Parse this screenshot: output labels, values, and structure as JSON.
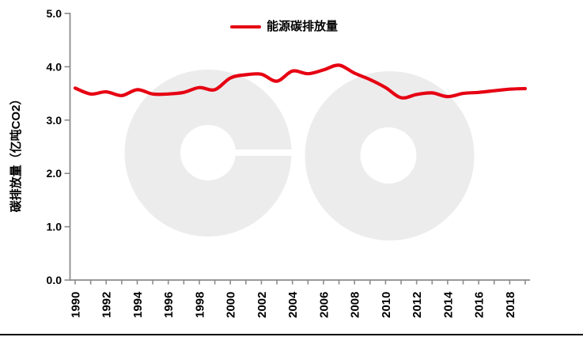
{
  "chart": {
    "watermark_text": "eo",
    "legend": {
      "label": "能源碳排放量"
    }
  },
  "chart_data": {
    "type": "line",
    "title": "",
    "xlabel": "",
    "ylabel": "碳排放量（亿吨CO2）",
    "ylim": [
      0.0,
      5.0
    ],
    "y_tick_labels": [
      "0.0",
      "1.0",
      "2.0",
      "3.0",
      "4.0",
      "5.0"
    ],
    "x": [
      1990,
      1991,
      1992,
      1993,
      1994,
      1995,
      1996,
      1997,
      1998,
      1999,
      2000,
      2001,
      2002,
      2003,
      2004,
      2005,
      2006,
      2007,
      2008,
      2009,
      2010,
      2011,
      2012,
      2013,
      2014,
      2015,
      2016,
      2017,
      2018,
      2019
    ],
    "x_tick_labels": [
      "1990",
      "1992",
      "1994",
      "1996",
      "1998",
      "2000",
      "2002",
      "2004",
      "2006",
      "2008",
      "2010",
      "2012",
      "2014",
      "2016",
      "2018"
    ],
    "x_label_step": 2,
    "grid": false,
    "legend_position": "top-center",
    "series": [
      {
        "name": "能源碳排放量",
        "color": "#e60012",
        "values": [
          3.6,
          3.49,
          3.53,
          3.46,
          3.57,
          3.49,
          3.49,
          3.52,
          3.61,
          3.57,
          3.79,
          3.85,
          3.86,
          3.73,
          3.92,
          3.87,
          3.94,
          4.03,
          3.88,
          3.76,
          3.61,
          3.42,
          3.48,
          3.51,
          3.44,
          3.5,
          3.52,
          3.55,
          3.58,
          3.59
        ]
      }
    ]
  },
  "colors": {
    "background": "#ffffff",
    "axis": "#8c8c8c",
    "tick_text": "#000000",
    "watermark": "#ececec",
    "series_red": "#e60012",
    "bottom_rule": "#000000"
  }
}
